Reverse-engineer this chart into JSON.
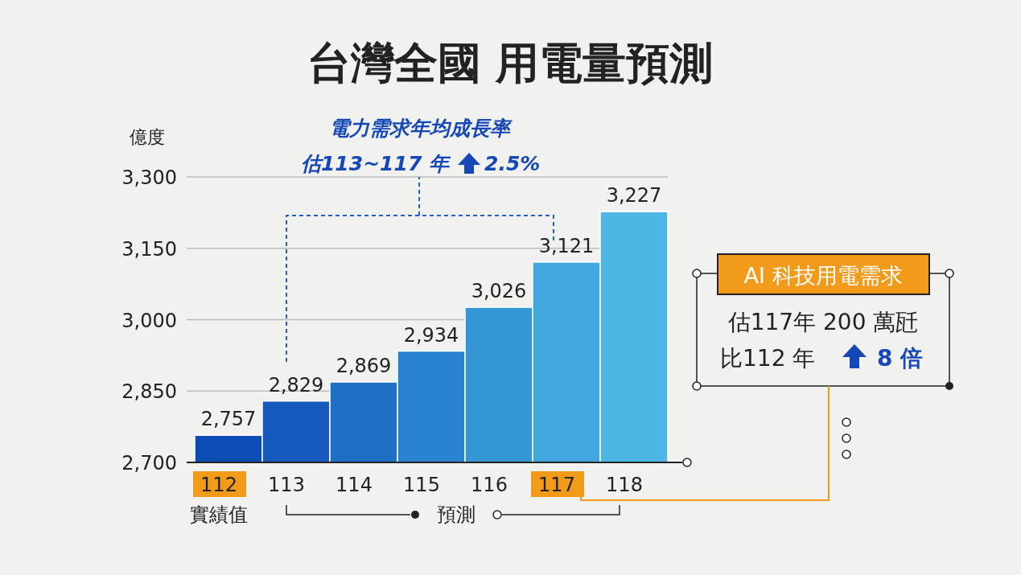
{
  "chart_data": {
    "type": "bar",
    "title": "台灣全國 用電量預測",
    "ylabel": "億度",
    "categories": [
      "112",
      "113",
      "114",
      "115",
      "116",
      "117",
      "118"
    ],
    "values": [
      2757,
      2829,
      2869,
      2934,
      3026,
      3121,
      3227
    ],
    "colors": [
      "#0b4db5",
      "#1459bb",
      "#1f6fc6",
      "#2a83ce",
      "#3596d6",
      "#41a7de",
      "#4db6e4"
    ],
    "value_labels": [
      "2,757",
      "2,829",
      "2,869",
      "2,934",
      "3,026",
      "3,121",
      "3,227"
    ],
    "ylim": [
      2700,
      3300
    ],
    "yticks": [
      {
        "value": 2700,
        "label": "2,700"
      },
      {
        "value": 2850,
        "label": "2,850"
      },
      {
        "value": 3000,
        "label": "3,000"
      },
      {
        "value": 3150,
        "label": "3,150"
      },
      {
        "value": 3300,
        "label": "3,300"
      }
    ],
    "grid": "y",
    "annotations": [
      "電力需求年均成長率",
      "估113~117 年",
      "2.5%",
      "AI 科技用電需求",
      "估117年 200 萬瓩",
      "比112 年",
      "8 倍",
      "實績值",
      "預測"
    ]
  }
}
